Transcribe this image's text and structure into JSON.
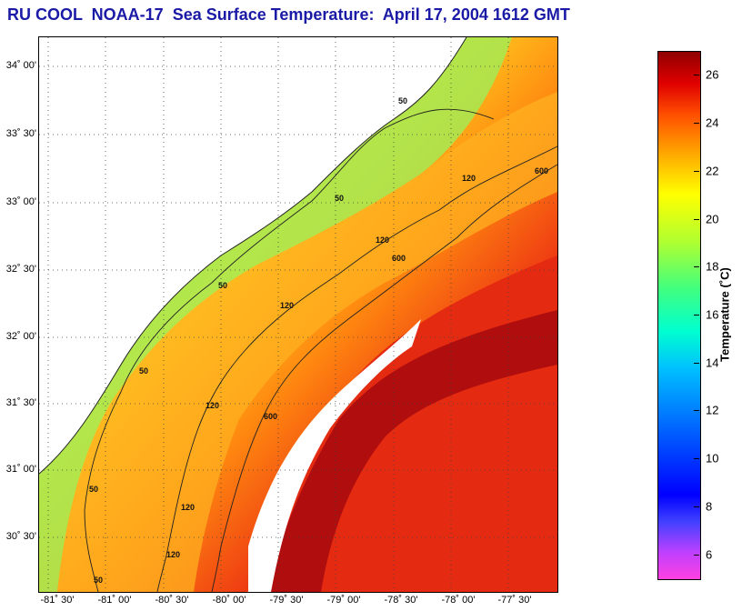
{
  "title": "RU COOL  NOAA-17  Sea Surface Temperature:  April 17, 2004 1612 GMT",
  "lat_labels": [
    "34˚ 00'",
    "33˚ 30'",
    "33˚ 00'",
    "32˚ 30'",
    "32˚ 00'",
    "31˚ 30'",
    "31˚ 00'",
    "30˚ 30'"
  ],
  "lon_labels": [
    "-81˚ 30'",
    "-81˚ 00'",
    "-80˚ 30'",
    "-80˚ 00'",
    "-79˚ 30'",
    "-79˚ 00'",
    "-78˚ 30'",
    "-78˚ 00'",
    "-77˚ 30'"
  ],
  "colorbar": {
    "label": "Temperature (˚C)",
    "ticks": [
      "26",
      "24",
      "22",
      "20",
      "18",
      "16",
      "14",
      "12",
      "10",
      "8",
      "6"
    ],
    "min": 5,
    "max": 27
  },
  "contour_labels": {
    "c50": "50",
    "c120": "120",
    "c600": "600"
  },
  "colors": {
    "land": "#ffffff",
    "title": "#1a1aa6",
    "warm": "#c81414",
    "hot": "#a80d0d",
    "mid": "#ff7a10",
    "cool": "#b8f040"
  }
}
